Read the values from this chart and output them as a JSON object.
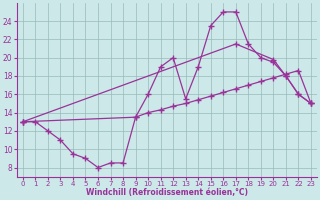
{
  "xlabel": "Windchill (Refroidissement éolien,°C)",
  "background_color": "#cce8e8",
  "line_color": "#993399",
  "grid_color": "#99bbbb",
  "xlim": [
    -0.5,
    23.5
  ],
  "ylim": [
    7,
    26
  ],
  "yticks": [
    8,
    10,
    12,
    14,
    16,
    18,
    20,
    22,
    24
  ],
  "xticks": [
    0,
    1,
    2,
    3,
    4,
    5,
    6,
    7,
    8,
    9,
    10,
    11,
    12,
    13,
    14,
    15,
    16,
    17,
    18,
    19,
    20,
    21,
    22,
    23
  ],
  "series1_x": [
    0,
    1,
    2,
    3,
    4,
    5,
    6,
    7,
    8,
    9,
    10,
    11,
    12,
    13,
    14,
    15,
    16,
    17,
    18,
    19,
    20,
    21,
    22,
    23
  ],
  "series1_y": [
    13,
    13,
    12,
    11,
    9.5,
    9,
    8,
    8.5,
    8.5,
    13.5,
    16,
    19,
    20,
    15.5,
    19,
    23.5,
    25,
    25,
    21.5,
    20,
    19.5,
    18,
    16,
    15
  ],
  "series2_x": [
    0,
    17,
    20,
    21,
    22,
    23
  ],
  "series2_y": [
    13,
    21.5,
    19.8,
    18,
    16,
    15
  ],
  "series3_x": [
    0,
    9,
    10,
    11,
    12,
    13,
    14,
    15,
    16,
    17,
    18,
    19,
    20,
    21,
    22,
    23
  ],
  "series3_y": [
    13,
    13.5,
    14,
    14.3,
    14.7,
    15,
    15.4,
    15.8,
    16.2,
    16.6,
    17,
    17.4,
    17.8,
    18.2,
    18.6,
    15
  ]
}
